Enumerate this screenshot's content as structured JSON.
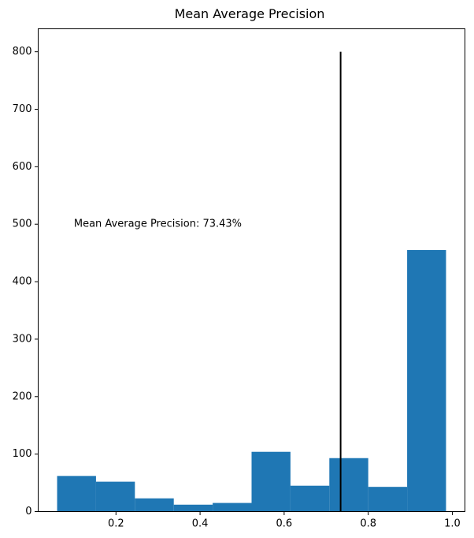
{
  "chart_data": {
    "type": "bar",
    "title": "Mean Average Precision",
    "xlabel": "",
    "ylabel": "",
    "bins": [
      {
        "x0": 0.06,
        "x1": 0.1525,
        "count": 62
      },
      {
        "x0": 0.1525,
        "x1": 0.245,
        "count": 52
      },
      {
        "x0": 0.245,
        "x1": 0.3375,
        "count": 23
      },
      {
        "x0": 0.3375,
        "x1": 0.43,
        "count": 12
      },
      {
        "x0": 0.43,
        "x1": 0.5225,
        "count": 15
      },
      {
        "x0": 0.5225,
        "x1": 0.615,
        "count": 104
      },
      {
        "x0": 0.615,
        "x1": 0.7075,
        "count": 45
      },
      {
        "x0": 0.7075,
        "x1": 0.8,
        "count": 93
      },
      {
        "x0": 0.8,
        "x1": 0.8925,
        "count": 43
      },
      {
        "x0": 0.8925,
        "x1": 0.985,
        "count": 455
      }
    ],
    "xlim": [
      0.015,
      1.03
    ],
    "ylim": [
      0,
      840
    ],
    "xticks": [
      0.2,
      0.4,
      0.6,
      0.8,
      1.0
    ],
    "xtick_labels": [
      "0.2",
      "0.4",
      "0.6",
      "0.8",
      "1.0"
    ],
    "yticks": [
      0,
      100,
      200,
      300,
      400,
      500,
      600,
      700,
      800
    ],
    "ytick_labels": [
      "0",
      "100",
      "200",
      "300",
      "400",
      "500",
      "600",
      "700",
      "800"
    ],
    "vline": {
      "x": 0.7343,
      "ymin": 0,
      "ymax": 800
    },
    "annotation": {
      "text": "Mean Average Precision: 73.43%",
      "x": 0.1,
      "y": 500
    },
    "bar_color": "#1f77b4",
    "vline_color": "#000000",
    "grid": false
  }
}
